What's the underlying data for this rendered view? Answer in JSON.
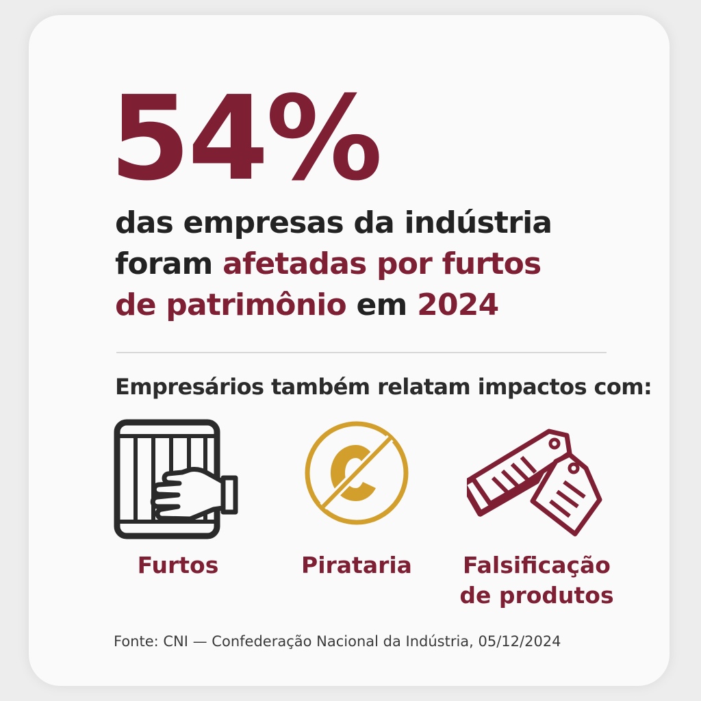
{
  "stat": {
    "value": "54%"
  },
  "headline": {
    "line1": "das empresas da indústria",
    "line2_plain": "foram ",
    "line2_highlight": "afetadas por furtos",
    "line3_highlight": "de patrimônio",
    "line3_plain": " em ",
    "line3_year": "2024"
  },
  "subheading": "Empresários também relatam impactos com:",
  "impacts": [
    {
      "icon": "theft-hand-bars-icon",
      "label": "Furtos"
    },
    {
      "icon": "no-copyright-icon",
      "label": "Pirataria"
    },
    {
      "icon": "price-tags-icon",
      "label_line1": "Falsificação",
      "label_line2": "de produtos"
    }
  ],
  "source": "Fonte: CNI — Confederação Nacional da Indústria, 05/12/2024",
  "colors": {
    "accent": "#7e1f33",
    "gold": "#d29e2c",
    "text": "#222222",
    "icon_dark": "#2a2a2a"
  }
}
